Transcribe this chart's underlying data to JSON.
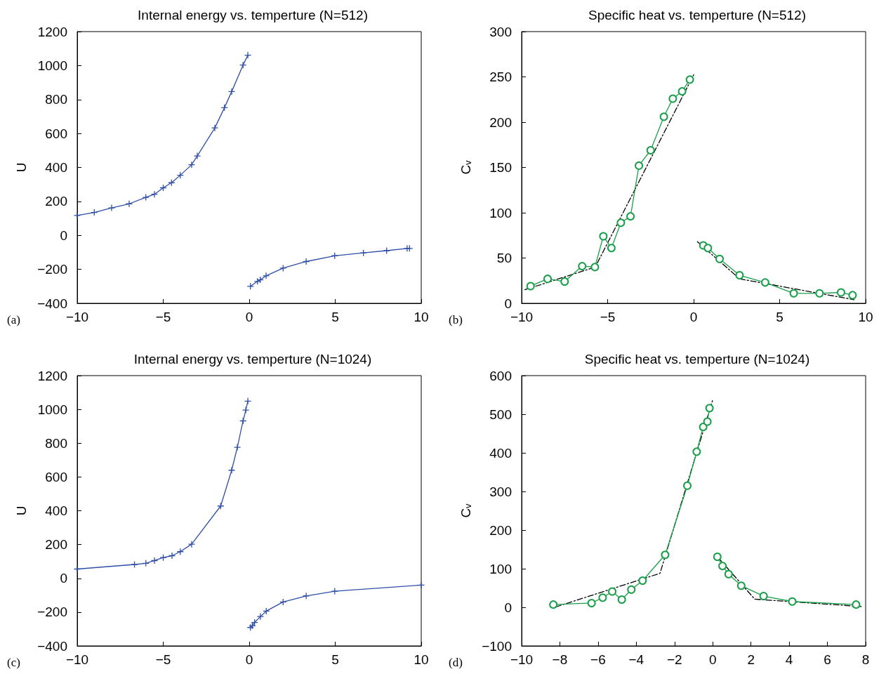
{
  "chart_data": [
    {
      "type": "line",
      "title": "Internal energy vs. temperture (N=512)",
      "ylabel": "U",
      "annotations": [
        "(a)"
      ],
      "xlim": [
        -10,
        10
      ],
      "xticks": [
        -10,
        -5,
        0,
        5,
        10
      ],
      "ylim": [
        -400,
        1200
      ],
      "yticks": [
        -400,
        -200,
        0,
        200,
        400,
        600,
        800,
        1000,
        1200
      ],
      "marker": "cross",
      "series": [
        {
          "color": "#2f4fa8",
          "x": [
            -10,
            -9.01,
            -8.0,
            -6.98,
            -6.01,
            -5.51,
            -5.0,
            -4.52,
            -4.01,
            -3.35,
            -3.02,
            -2.0,
            -1.44,
            -1.02,
            -0.36,
            -0.08
          ],
          "values": [
            117,
            135,
            162,
            186,
            224,
            242,
            280,
            310,
            354,
            416,
            468,
            633,
            752,
            847,
            1003,
            1061
          ]
        },
        {
          "color": "#2f4fa8",
          "x": [
            0.07,
            0.48,
            0.64,
            0.98,
            1.97,
            3.31,
            4.97,
            6.64,
            7.99,
            9.18,
            9.32
          ],
          "values": [
            -300,
            -271,
            -262,
            -238,
            -193,
            -154,
            -120,
            -103,
            -90,
            -77,
            -77
          ]
        }
      ]
    },
    {
      "type": "line",
      "title": "Specific heat vs. temperture (N=512)",
      "ylabel": "Cᵥ",
      "annotations": [
        "(b)"
      ],
      "xlim": [
        -10,
        10
      ],
      "xticks": [
        -10,
        -5,
        0,
        5,
        10
      ],
      "ylim": [
        0,
        300
      ],
      "yticks": [
        0,
        50,
        100,
        150,
        200,
        250,
        300
      ],
      "series": [
        {
          "color": "#000000",
          "marker": "none",
          "line_style": "dashed",
          "x": [
            -9.81,
            -5.72,
            0.02
          ],
          "values": [
            15,
            40,
            253
          ]
        },
        {
          "color": "#000000",
          "marker": "none",
          "line_style": "dashed",
          "x": [
            0.22,
            2.67,
            9.33
          ],
          "values": [
            68,
            27,
            4
          ]
        },
        {
          "color": "#1a9f4a",
          "marker": "circle",
          "x": [
            -9.48,
            -8.49,
            -7.5,
            -6.48,
            -5.74,
            -5.25,
            -4.78,
            -4.23,
            -3.67,
            -3.18,
            -2.5,
            -1.73,
            -1.21,
            -0.67,
            -0.22
          ],
          "values": [
            19,
            27,
            24,
            41,
            40,
            74,
            61,
            89,
            96,
            152,
            169,
            206,
            226,
            234,
            247
          ]
        },
        {
          "color": "#1a9f4a",
          "marker": "circle",
          "x": [
            0.56,
            0.83,
            1.51,
            2.67,
            4.16,
            5.82,
            7.32,
            8.57,
            9.24
          ],
          "values": [
            64,
            61,
            49,
            31,
            23,
            11,
            11,
            12,
            9
          ]
        }
      ]
    },
    {
      "type": "line",
      "title": "Internal energy vs. temperture (N=1024)",
      "ylabel": "U",
      "annotations": [
        "(c)"
      ],
      "xlim": [
        -10,
        10
      ],
      "xticks": [
        -10,
        -5,
        0,
        5,
        10
      ],
      "ylim": [
        -400,
        1200
      ],
      "yticks": [
        -400,
        -200,
        0,
        200,
        400,
        600,
        800,
        1000,
        1200
      ],
      "marker": "cross",
      "series": [
        {
          "color": "#2f4fa8",
          "x": [
            -10,
            -6.67,
            -6.01,
            -5.51,
            -5.0,
            -4.49,
            -4.01,
            -3.35,
            -1.66,
            -1.02,
            -0.69,
            -0.36,
            -0.2,
            -0.08
          ],
          "values": [
            55,
            82,
            89,
            105,
            123,
            134,
            158,
            202,
            428,
            640,
            776,
            932,
            996,
            1049
          ]
        },
        {
          "color": "#2f4fa8",
          "x": [
            0.07,
            0.18,
            0.31,
            0.65,
            0.99,
            1.97,
            3.31,
            4.97,
            10.0
          ],
          "values": [
            -291,
            -281,
            -261,
            -226,
            -194,
            -140,
            -104,
            -76,
            -40
          ]
        }
      ]
    },
    {
      "type": "line",
      "title": "Specific heat vs. temperture (N=1024)",
      "ylabel": "Cᵥ",
      "annotations": [
        "(d)"
      ],
      "xlim": [
        -10,
        8
      ],
      "xticks": [
        -10,
        -8,
        -6,
        -4,
        -2,
        0,
        2,
        4,
        6,
        8
      ],
      "ylim": [
        -100,
        600
      ],
      "yticks": [
        -100,
        0,
        100,
        200,
        300,
        400,
        500,
        600
      ],
      "series": [
        {
          "color": "#000000",
          "marker": "none",
          "line_style": "dashed",
          "x": [
            -8.21,
            -2.76,
            -0.01
          ],
          "values": [
            1,
            88,
            536
          ]
        },
        {
          "color": "#000000",
          "marker": "none",
          "line_style": "dashed",
          "x": [
            0.26,
            2.2,
            7.77
          ],
          "values": [
            130,
            21,
            2
          ]
        },
        {
          "color": "#1a9f4a",
          "marker": "circle",
          "x": [
            -8.34,
            -6.34,
            -5.76,
            -5.26,
            -4.76,
            -4.26,
            -3.67,
            -2.49,
            -1.33,
            -0.84,
            -0.5,
            -0.28,
            -0.17
          ],
          "values": [
            7,
            11,
            25,
            41,
            20,
            46,
            69,
            136,
            315,
            403,
            467,
            481,
            516
          ]
        },
        {
          "color": "#1a9f4a",
          "marker": "circle",
          "x": [
            0.24,
            0.51,
            0.83,
            1.49,
            2.66,
            4.16,
            7.5
          ],
          "values": [
            131,
            107,
            86,
            56,
            29,
            15,
            7
          ]
        }
      ]
    }
  ]
}
